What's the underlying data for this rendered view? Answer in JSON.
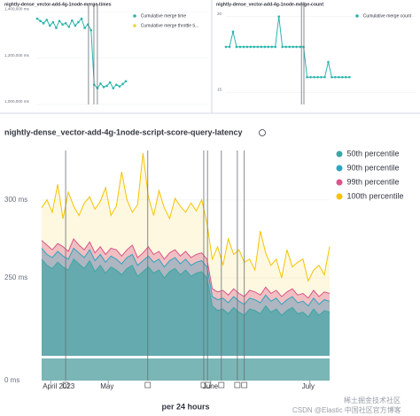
{
  "chart_data": [
    {
      "type": "line",
      "title": "nightly-dense_vector-add-4g-1node-merge-times",
      "xlim": [
        0,
        54
      ],
      "ylim": [
        1000000,
        1420000
      ],
      "yticks": [
        {
          "value": 1400000,
          "label": "1,400,000 ms"
        },
        {
          "value": 1200000,
          "label": "1,200,000 ms"
        },
        {
          "value": 1000000,
          "label": "1,000,000 ms"
        }
      ],
      "annotation_lines": [
        16.2,
        17.9,
        19
      ],
      "series": [
        {
          "name": "Cumulative merge time",
          "color": "#2bb5ad",
          "values": [
            1370000,
            1360000,
            1350000,
            1365000,
            1340000,
            1355000,
            1330000,
            1360000,
            1345000,
            1350000,
            1335000,
            1362000,
            1340000,
            1355000,
            1370000,
            1330000,
            1345000,
            1320000,
            1085000,
            1070000,
            1090000,
            1075000,
            1080000,
            1095000,
            1070000,
            1085000,
            1078000,
            1088000,
            1100000
          ]
        },
        {
          "name": "Cumulative merge throttle ti...",
          "color": "#f1d32b",
          "values": []
        }
      ]
    },
    {
      "type": "line",
      "title": "nightly-dense_vector-add-4g-1node-merge-count",
      "xlim": [
        0,
        54
      ],
      "ylim": [
        14.2,
        20.8
      ],
      "yticks": [
        20,
        15
      ],
      "annotation_lines": [
        21.4,
        22.1
      ],
      "series": [
        {
          "name": "Cumulative merge count",
          "color": "#2bb5ad",
          "values": [
            18,
            18,
            19,
            18,
            18,
            18,
            18,
            18,
            18,
            18,
            18,
            18,
            18,
            18,
            18,
            20,
            18,
            18,
            18,
            18,
            18,
            18,
            18,
            16,
            16,
            16,
            16,
            16,
            16,
            17,
            16,
            16,
            16,
            16,
            16,
            16
          ]
        }
      ]
    },
    {
      "type": "area",
      "title": "nightly-dense_vector-add-4g-1node-script-score-query-latency",
      "x_label": "per 24 hours",
      "xlim": [
        0,
        54
      ],
      "ylim": [
        0,
        330
      ],
      "axis_break": [
        10,
        200
      ],
      "yticks": [
        {
          "value": 300,
          "label": "300 ms"
        },
        {
          "value": 250,
          "label": "250 ms"
        },
        {
          "value": 0,
          "label": "0 ms"
        }
      ],
      "xticks": [
        {
          "value": 1.7,
          "label": "April 2023"
        },
        {
          "value": 12.5,
          "label": "May"
        },
        {
          "value": 31.7,
          "label": "June"
        },
        {
          "value": 50.3,
          "label": "July"
        }
      ],
      "annotation_lines": [
        4.5,
        19.9,
        30.4,
        31.1,
        33.7,
        36.7,
        38
      ],
      "legend": "right",
      "series": [
        {
          "name": "100th percentile",
          "color": "#f5c400",
          "values": [
            295,
            300,
            292,
            310,
            288,
            305,
            296,
            290,
            298,
            302,
            294,
            299,
            308,
            290,
            296,
            318,
            300,
            292,
            297,
            330,
            302,
            290,
            306,
            295,
            288,
            301,
            296,
            292,
            298,
            293,
            300,
            285,
            262,
            270,
            258,
            275,
            265,
            268,
            260,
            262,
            255,
            280,
            266,
            258,
            262,
            250,
            268,
            257,
            260,
            262,
            248,
            255,
            258,
            252,
            270
          ]
        },
        {
          "name": "99th percentile",
          "color": "#d9558a",
          "values": [
            274,
            271,
            268,
            272,
            270,
            267,
            275,
            271,
            268,
            273,
            266,
            270,
            265,
            269,
            268,
            264,
            268,
            271,
            263,
            266,
            270,
            265,
            267,
            262,
            266,
            268,
            264,
            267,
            263,
            265,
            266,
            262,
            243,
            241,
            242,
            239,
            243,
            240,
            238,
            242,
            241,
            239,
            244,
            240,
            242,
            238,
            241,
            243,
            239,
            240,
            237,
            242,
            238,
            241,
            240
          ]
        },
        {
          "name": "90th percentile",
          "color": "#2ea5c0",
          "values": [
            269,
            265,
            263,
            267,
            264,
            262,
            269,
            266,
            263,
            268,
            261,
            265,
            260,
            264,
            262,
            259,
            263,
            265,
            258,
            261,
            264,
            260,
            262,
            257,
            261,
            263,
            259,
            262,
            258,
            260,
            261,
            257,
            238,
            236,
            237,
            234,
            238,
            235,
            233,
            237,
            236,
            234,
            239,
            235,
            237,
            233,
            236,
            238,
            234,
            235,
            232,
            237,
            233,
            236,
            235
          ]
        },
        {
          "name": "50th percentile",
          "color": "#3fa5a5",
          "values": [
            262,
            258,
            256,
            260,
            257,
            255,
            262,
            259,
            256,
            261,
            254,
            258,
            253,
            257,
            255,
            252,
            256,
            258,
            251,
            254,
            257,
            253,
            255,
            250,
            254,
            256,
            252,
            255,
            251,
            253,
            254,
            250,
            232,
            229,
            230,
            227,
            231,
            228,
            226,
            230,
            229,
            227,
            232,
            228,
            230,
            226,
            229,
            231,
            227,
            228,
            225,
            230,
            226,
            229,
            228
          ]
        }
      ]
    }
  ],
  "watermarks": [
    "稀土掘金技术社区",
    "CSDN @Elastic 中国社区官方博客"
  ]
}
